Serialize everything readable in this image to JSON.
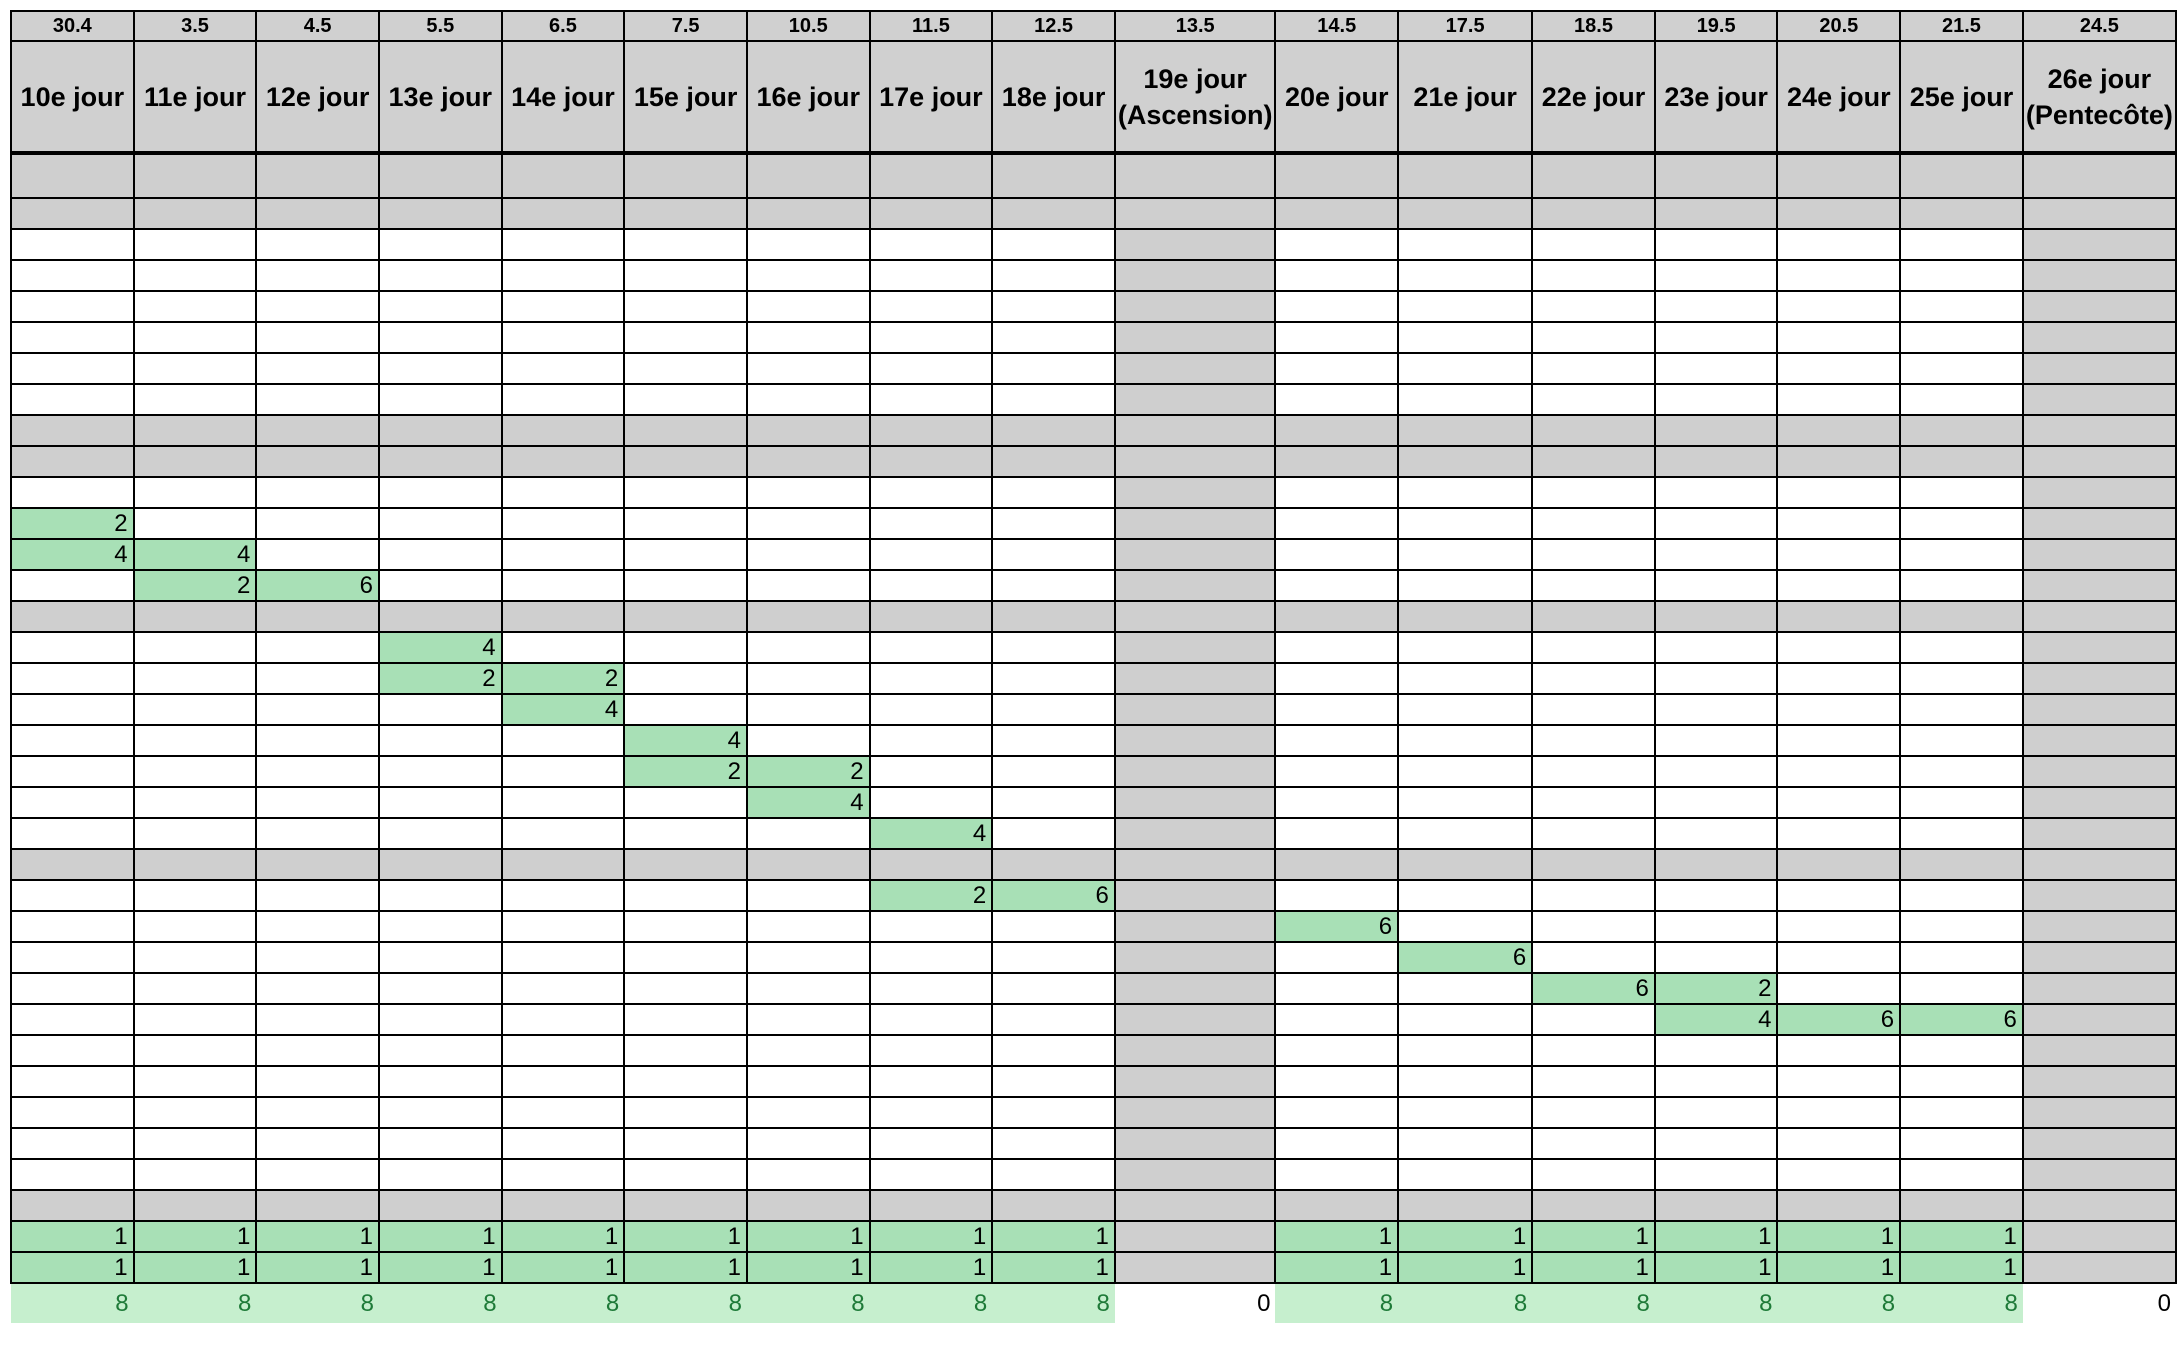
{
  "dates": [
    "30.4",
    "3.5",
    "4.5",
    "5.5",
    "6.5",
    "7.5",
    "10.5",
    "11.5",
    "12.5",
    "13.5",
    "14.5",
    "17.5",
    "18.5",
    "19.5",
    "20.5",
    "21.5",
    "24.5"
  ],
  "days": [
    "10e jour",
    "11e jour",
    "12e jour",
    "13e jour",
    "14e jour",
    "15e jour",
    "16e jour",
    "17e jour",
    "18e jour",
    "19e jour (Ascension)",
    "20e jour",
    "21e jour",
    "22e jour",
    "23e jour",
    "24e jour",
    "25e jour",
    "26e jour (Pentecôte)"
  ],
  "holiday_columns": [
    9,
    16
  ],
  "rows": [
    {
      "type": "sep-tall"
    },
    {
      "type": "sep"
    },
    {
      "type": "r",
      "cells": {}
    },
    {
      "type": "r",
      "cells": {}
    },
    {
      "type": "r",
      "cells": {}
    },
    {
      "type": "r",
      "cells": {}
    },
    {
      "type": "r",
      "cells": {}
    },
    {
      "type": "r",
      "cells": {}
    },
    {
      "type": "sep"
    },
    {
      "type": "sep"
    },
    {
      "type": "r",
      "cells": {}
    },
    {
      "type": "r",
      "cells": {
        "0": "2"
      }
    },
    {
      "type": "r",
      "cells": {
        "0": "4",
        "1": "4"
      }
    },
    {
      "type": "r",
      "cells": {
        "1": "2",
        "2": "6"
      }
    },
    {
      "type": "sep"
    },
    {
      "type": "r",
      "cells": {
        "3": "4"
      }
    },
    {
      "type": "r",
      "cells": {
        "3": "2",
        "4": "2"
      }
    },
    {
      "type": "r",
      "cells": {
        "4": "4"
      }
    },
    {
      "type": "r",
      "cells": {
        "5": "4"
      }
    },
    {
      "type": "r",
      "cells": {
        "5": "2",
        "6": "2"
      }
    },
    {
      "type": "r",
      "cells": {
        "6": "4"
      }
    },
    {
      "type": "r",
      "cells": {
        "7": "4"
      }
    },
    {
      "type": "sep"
    },
    {
      "type": "r",
      "cells": {
        "7": "2",
        "8": "6"
      }
    },
    {
      "type": "r",
      "cells": {
        "10": "6"
      }
    },
    {
      "type": "r",
      "cells": {
        "11": "6"
      }
    },
    {
      "type": "r",
      "cells": {
        "12": "6",
        "13": "2"
      }
    },
    {
      "type": "r",
      "cells": {
        "13": "4",
        "14": "6",
        "15": "6"
      }
    },
    {
      "type": "r",
      "cells": {}
    },
    {
      "type": "r",
      "cells": {}
    },
    {
      "type": "r",
      "cells": {}
    },
    {
      "type": "r",
      "cells": {}
    },
    {
      "type": "r",
      "cells": {}
    },
    {
      "type": "sep"
    },
    {
      "type": "r",
      "cells": {
        "0": "1",
        "1": "1",
        "2": "1",
        "3": "1",
        "4": "1",
        "5": "1",
        "6": "1",
        "7": "1",
        "8": "1",
        "10": "1",
        "11": "1",
        "12": "1",
        "13": "1",
        "14": "1",
        "15": "1"
      }
    },
    {
      "type": "r",
      "cells": {
        "0": "1",
        "1": "1",
        "2": "1",
        "3": "1",
        "4": "1",
        "5": "1",
        "6": "1",
        "7": "1",
        "8": "1",
        "10": "1",
        "11": "1",
        "12": "1",
        "13": "1",
        "14": "1",
        "15": "1"
      }
    }
  ],
  "totals": [
    "8",
    "8",
    "8",
    "8",
    "8",
    "8",
    "8",
    "8",
    "8",
    "0",
    "8",
    "8",
    "8",
    "8",
    "8",
    "8",
    "0"
  ]
}
